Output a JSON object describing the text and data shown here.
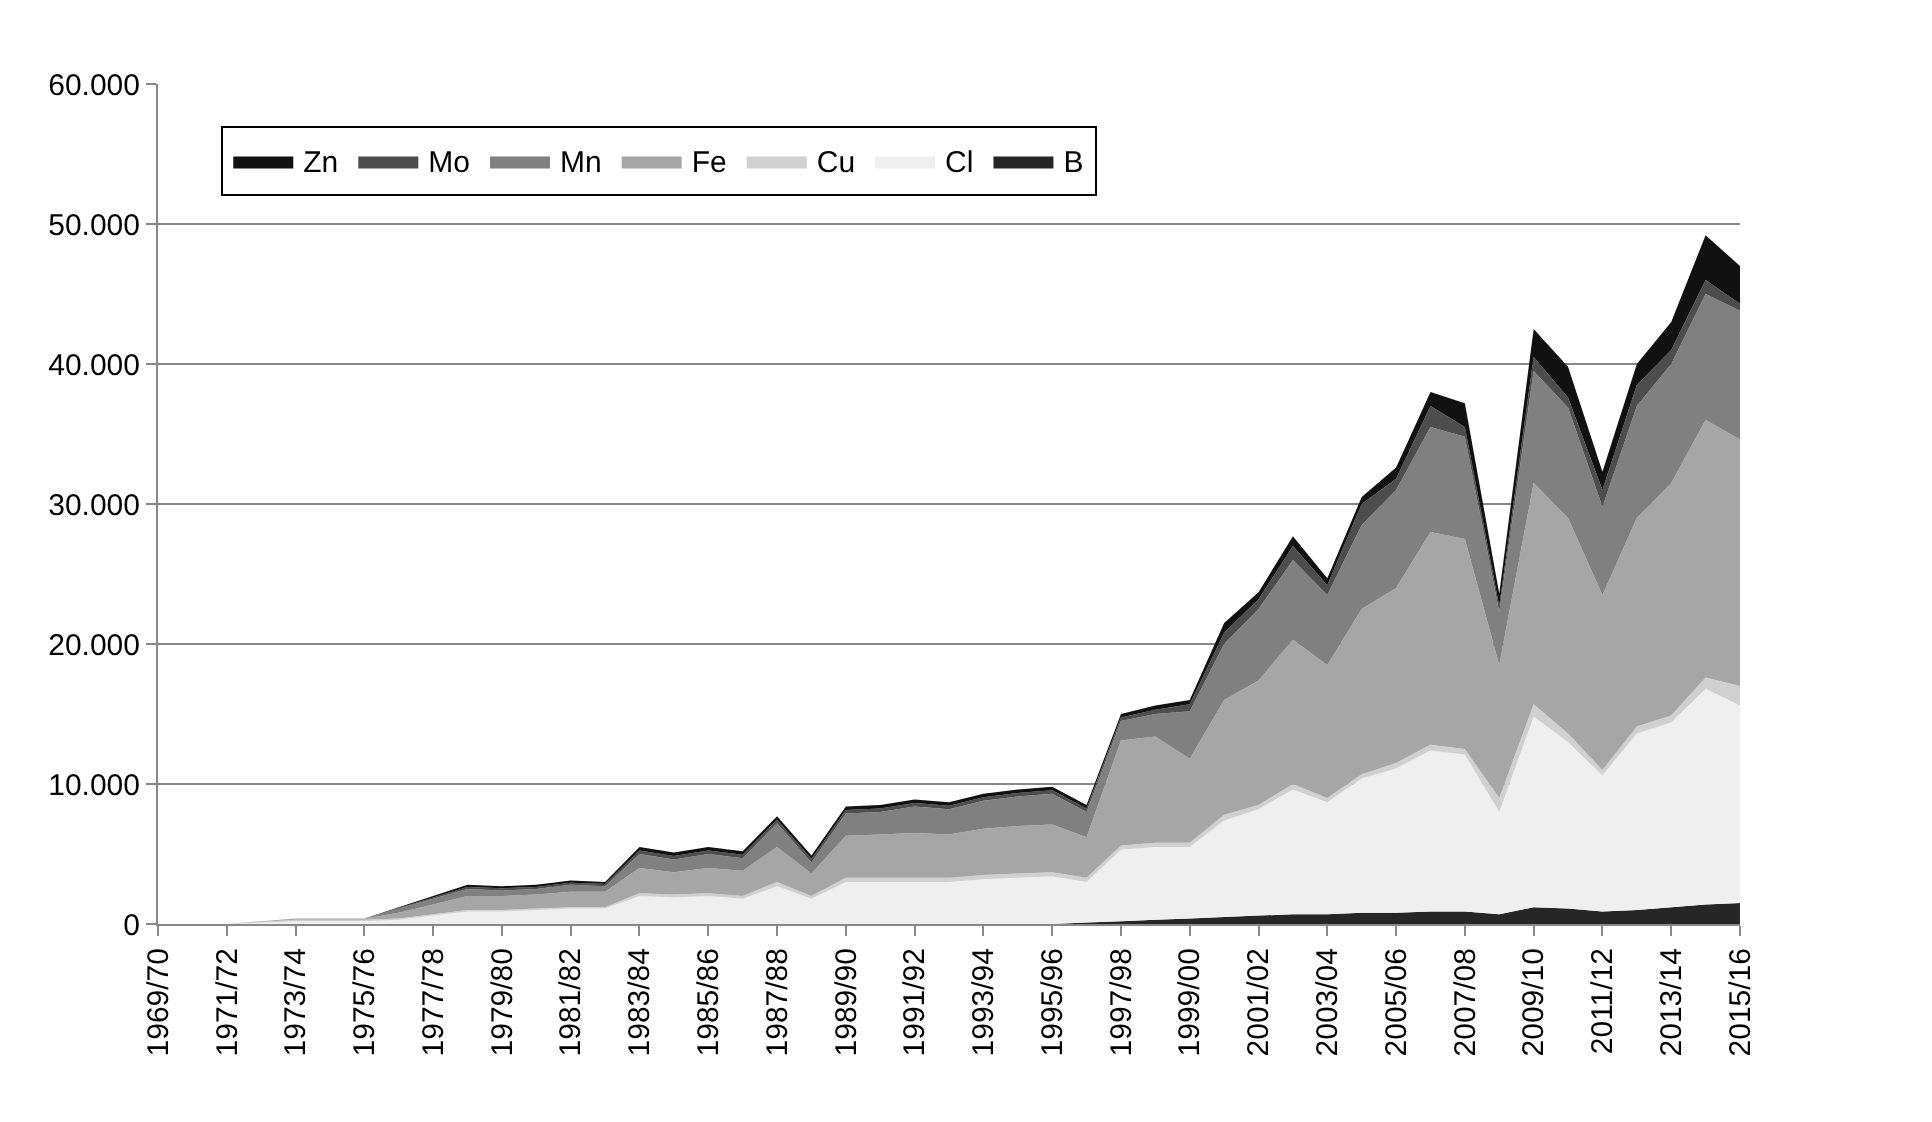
{
  "chart_data": {
    "type": "area",
    "stacked": true,
    "grid": "y",
    "legend": "top left",
    "categories": [
      "1969/70",
      null,
      "1971/72",
      null,
      "1973/74",
      null,
      "1975/76",
      null,
      "1977/78",
      null,
      "1979/80",
      null,
      "1981/82",
      null,
      "1983/84",
      null,
      "1985/86",
      null,
      "1987/88",
      null,
      "1989/90",
      null,
      "1991/92",
      null,
      "1993/94",
      null,
      "1995/96",
      null,
      "1997/98",
      null,
      "1999/00",
      null,
      "2001/02",
      null,
      "2003/04",
      null,
      "2005/06",
      null,
      "2007/08",
      null,
      "2009/10",
      null,
      "2011/12",
      null,
      "2013/14",
      null,
      "2015/16"
    ],
    "ylim": [
      0,
      60000
    ],
    "yticks": [
      {
        "value": 0,
        "label": "0"
      },
      {
        "value": 10000,
        "label": "10.000"
      },
      {
        "value": 20000,
        "label": "20.000"
      },
      {
        "value": 30000,
        "label": "30.000"
      },
      {
        "value": 40000,
        "label": "40.000"
      },
      {
        "value": 50000,
        "label": "50.000"
      },
      {
        "value": 60000,
        "label": "60.000"
      }
    ],
    "series": [
      {
        "name": "B",
        "color": "#262626",
        "values": [
          0,
          0,
          0,
          0,
          0,
          0,
          0,
          0,
          0,
          0,
          0,
          0,
          0,
          0,
          0,
          0,
          0,
          0,
          0,
          0,
          0,
          0,
          0,
          0,
          0,
          0,
          0,
          100,
          200,
          300,
          400,
          500,
          600,
          700,
          700,
          800,
          800,
          900,
          900,
          700,
          1200,
          1100,
          900,
          1000,
          1200,
          1400,
          1500
        ]
      },
      {
        "name": "Cl",
        "color": "#efefef",
        "values": [
          0,
          0,
          0,
          100,
          200,
          200,
          200,
          300,
          600,
          900,
          900,
          1000,
          1100,
          1100,
          2000,
          1900,
          2000,
          1800,
          2700,
          1800,
          3000,
          3000,
          3000,
          3000,
          3200,
          3300,
          3400,
          2900,
          5100,
          5200,
          5100,
          6900,
          7600,
          8900,
          8000,
          9600,
          10300,
          11500,
          11200,
          7300,
          13600,
          11900,
          9700,
          12600,
          13200,
          15400,
          14100
        ]
      },
      {
        "name": "Cu",
        "color": "#d0d0d0",
        "values": [
          0,
          0,
          0,
          50,
          100,
          100,
          100,
          100,
          100,
          100,
          100,
          100,
          100,
          100,
          200,
          200,
          200,
          200,
          300,
          200,
          300,
          300,
          300,
          300,
          300,
          300,
          300,
          300,
          300,
          300,
          300,
          400,
          300,
          400,
          300,
          300,
          400,
          400,
          400,
          1000,
          900,
          600,
          400,
          500,
          500,
          800,
          1400
        ]
      },
      {
        "name": "Fe",
        "color": "#a6a6a6",
        "values": [
          0,
          0,
          0,
          50,
          100,
          100,
          100,
          400,
          700,
          1000,
          1000,
          1000,
          1100,
          1100,
          1800,
          1600,
          1800,
          1800,
          2500,
          1600,
          3000,
          3100,
          3200,
          3100,
          3300,
          3400,
          3400,
          2900,
          7500,
          7600,
          6000,
          8200,
          8900,
          10300,
          9500,
          11800,
          12500,
          15200,
          15000,
          9500,
          15800,
          15400,
          12500,
          14900,
          16600,
          18400,
          17600
        ]
      },
      {
        "name": "Mn",
        "color": "#808080",
        "values": [
          0,
          0,
          0,
          0,
          0,
          0,
          0,
          300,
          400,
          500,
          400,
          400,
          500,
          400,
          1000,
          900,
          1000,
          900,
          1700,
          800,
          1600,
          1600,
          1900,
          1800,
          2000,
          2100,
          2200,
          1800,
          1400,
          1600,
          3400,
          4000,
          5100,
          5700,
          5000,
          6000,
          7000,
          7500,
          7300,
          3800,
          8000,
          7900,
          6300,
          8000,
          8500,
          9000,
          9200
        ]
      },
      {
        "name": "Mo",
        "color": "#4d4d4d",
        "values": [
          0,
          0,
          0,
          0,
          0,
          0,
          0,
          50,
          100,
          150,
          150,
          150,
          150,
          150,
          250,
          250,
          250,
          250,
          250,
          250,
          250,
          250,
          250,
          250,
          250,
          250,
          250,
          250,
          250,
          300,
          500,
          800,
          700,
          1000,
          700,
          1500,
          800,
          1500,
          700,
          400,
          1000,
          700,
          1200,
          1500,
          1000,
          1000,
          500
        ]
      },
      {
        "name": "Zn",
        "color": "#111111",
        "values": [
          0,
          0,
          0,
          0,
          0,
          0,
          0,
          50,
          100,
          150,
          150,
          150,
          150,
          150,
          250,
          250,
          250,
          250,
          250,
          250,
          250,
          250,
          250,
          250,
          250,
          250,
          250,
          250,
          250,
          300,
          300,
          700,
          500,
          700,
          500,
          500,
          800,
          1000,
          1700,
          900,
          2000,
          2200,
          1300,
          1500,
          2000,
          3200,
          2700
        ]
      }
    ]
  }
}
